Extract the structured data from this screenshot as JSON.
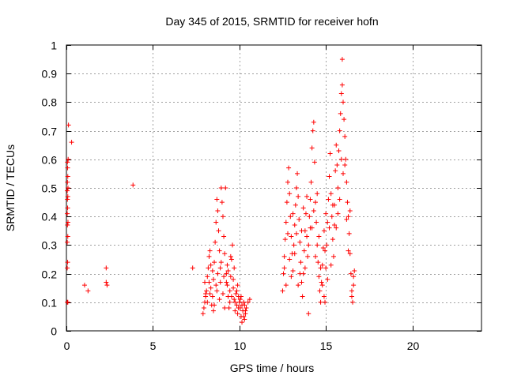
{
  "chart_data": {
    "type": "scatter",
    "title": "Day 345 of 2015, SRMTID for receiver hofn",
    "xlabel": "GPS time / hours",
    "ylabel": "SRMTID / TECUs",
    "xlim": [
      0,
      24
    ],
    "ylim": [
      0,
      1
    ],
    "xticks": [
      0,
      5,
      10,
      15,
      20
    ],
    "yticks": [
      0,
      0.1,
      0.2,
      0.3,
      0.4,
      0.5,
      0.6,
      0.7,
      0.8,
      0.9,
      1
    ],
    "xtick_labels": [
      "0",
      "5",
      "10",
      "15",
      "20"
    ],
    "ytick_labels": [
      "0",
      "0.1",
      "0.2",
      "0.3",
      "0.4",
      "0.5",
      "0.6",
      "0.7",
      "0.8",
      "0.9",
      "1"
    ],
    "grid": true,
    "marker": "+",
    "color": "#ff0000",
    "series": [
      {
        "name": "SRMTID",
        "points": [
          [
            0.05,
            0.1
          ],
          [
            0.08,
            0.1
          ],
          [
            0.05,
            0.22
          ],
          [
            0.07,
            0.24
          ],
          [
            0.05,
            0.31
          ],
          [
            0.08,
            0.33
          ],
          [
            0.06,
            0.37
          ],
          [
            0.09,
            0.38
          ],
          [
            0.05,
            0.41
          ],
          [
            0.07,
            0.43
          ],
          [
            0.06,
            0.46
          ],
          [
            0.08,
            0.47
          ],
          [
            0.05,
            0.49
          ],
          [
            0.09,
            0.5
          ],
          [
            0.06,
            0.52
          ],
          [
            0.08,
            0.54
          ],
          [
            0.07,
            0.57
          ],
          [
            0.06,
            0.59
          ],
          [
            0.1,
            0.6
          ],
          [
            0.12,
            0.72
          ],
          [
            0.3,
            0.66
          ],
          [
            1.05,
            0.16
          ],
          [
            1.25,
            0.14
          ],
          [
            2.3,
            0.22
          ],
          [
            2.3,
            0.17
          ],
          [
            2.35,
            0.16
          ],
          [
            3.85,
            0.51
          ],
          [
            7.3,
            0.22
          ],
          [
            7.9,
            0.06
          ],
          [
            7.95,
            0.08
          ],
          [
            8.0,
            0.1
          ],
          [
            8.05,
            0.12
          ],
          [
            8.1,
            0.14
          ],
          [
            8.0,
            0.17
          ],
          [
            8.15,
            0.19
          ],
          [
            8.2,
            0.22
          ],
          [
            8.25,
            0.26
          ],
          [
            8.3,
            0.28
          ],
          [
            8.35,
            0.15
          ],
          [
            8.4,
            0.09
          ],
          [
            8.45,
            0.12
          ],
          [
            8.5,
            0.18
          ],
          [
            8.55,
            0.24
          ],
          [
            8.6,
            0.31
          ],
          [
            8.65,
            0.38
          ],
          [
            8.7,
            0.46
          ],
          [
            8.75,
            0.42
          ],
          [
            8.8,
            0.35
          ],
          [
            8.85,
            0.28
          ],
          [
            8.9,
            0.22
          ],
          [
            8.95,
            0.5
          ],
          [
            9.0,
            0.45
          ],
          [
            9.05,
            0.4
          ],
          [
            9.1,
            0.33
          ],
          [
            9.15,
            0.27
          ],
          [
            9.2,
            0.5
          ],
          [
            9.25,
            0.2
          ],
          [
            9.3,
            0.16
          ],
          [
            9.35,
            0.12
          ],
          [
            9.4,
            0.08
          ],
          [
            9.45,
            0.14
          ],
          [
            9.5,
            0.19
          ],
          [
            9.55,
            0.25
          ],
          [
            9.6,
            0.3
          ],
          [
            9.65,
            0.18
          ],
          [
            9.7,
            0.11
          ],
          [
            9.75,
            0.07
          ],
          [
            9.8,
            0.13
          ],
          [
            9.85,
            0.09
          ],
          [
            9.9,
            0.06
          ],
          [
            9.95,
            0.12
          ],
          [
            10.0,
            0.1
          ],
          [
            10.05,
            0.08
          ],
          [
            10.1,
            0.05
          ],
          [
            10.15,
            0.03
          ],
          [
            10.2,
            0.07
          ],
          [
            10.25,
            0.1
          ],
          [
            10.3,
            0.09
          ],
          [
            10.35,
            0.06
          ],
          [
            10.4,
            0.08
          ],
          [
            10.5,
            0.1
          ],
          [
            10.6,
            0.11
          ],
          [
            8.05,
            0.13
          ],
          [
            8.25,
            0.17
          ],
          [
            8.45,
            0.21
          ],
          [
            8.65,
            0.16
          ],
          [
            8.85,
            0.11
          ],
          [
            9.05,
            0.13
          ],
          [
            9.25,
            0.17
          ],
          [
            9.45,
            0.1
          ],
          [
            9.65,
            0.15
          ],
          [
            9.85,
            0.14
          ],
          [
            10.05,
            0.11
          ],
          [
            10.25,
            0.05
          ],
          [
            8.35,
            0.23
          ],
          [
            8.55,
            0.09
          ],
          [
            8.75,
            0.2
          ],
          [
            8.95,
            0.24
          ],
          [
            9.15,
            0.08
          ],
          [
            9.35,
            0.21
          ],
          [
            9.55,
            0.12
          ],
          [
            9.75,
            0.1
          ],
          [
            9.95,
            0.08
          ],
          [
            10.15,
            0.09
          ],
          [
            10.35,
            0.07
          ],
          [
            8.15,
            0.1
          ],
          [
            8.3,
            0.13
          ],
          [
            8.5,
            0.07
          ],
          [
            8.7,
            0.14
          ],
          [
            8.9,
            0.17
          ],
          [
            9.1,
            0.19
          ],
          [
            9.3,
            0.23
          ],
          [
            9.5,
            0.26
          ],
          [
            9.7,
            0.22
          ],
          [
            9.9,
            0.16
          ],
          [
            10.1,
            0.12
          ],
          [
            10.3,
            0.04
          ],
          [
            12.5,
            0.14
          ],
          [
            12.55,
            0.2
          ],
          [
            12.6,
            0.26
          ],
          [
            12.65,
            0.32
          ],
          [
            12.7,
            0.38
          ],
          [
            12.75,
            0.45
          ],
          [
            12.8,
            0.52
          ],
          [
            12.85,
            0.57
          ],
          [
            12.9,
            0.48
          ],
          [
            12.95,
            0.4
          ],
          [
            13.0,
            0.33
          ],
          [
            13.05,
            0.27
          ],
          [
            13.1,
            0.21
          ],
          [
            13.15,
            0.3
          ],
          [
            13.2,
            0.37
          ],
          [
            13.25,
            0.44
          ],
          [
            13.3,
            0.5
          ],
          [
            13.35,
            0.55
          ],
          [
            13.4,
            0.47
          ],
          [
            13.45,
            0.39
          ],
          [
            13.5,
            0.31
          ],
          [
            13.55,
            0.24
          ],
          [
            13.6,
            0.17
          ],
          [
            13.65,
            0.12
          ],
          [
            13.7,
            0.2
          ],
          [
            13.75,
            0.28
          ],
          [
            13.8,
            0.35
          ],
          [
            13.85,
            0.41
          ],
          [
            13.9,
            0.33
          ],
          [
            13.95,
            0.26
          ],
          [
            14.0,
            0.06
          ],
          [
            14.05,
            0.4
          ],
          [
            14.1,
            0.46
          ],
          [
            14.15,
            0.52
          ],
          [
            14.2,
            0.64
          ],
          [
            14.25,
            0.7
          ],
          [
            14.3,
            0.73
          ],
          [
            14.35,
            0.59
          ],
          [
            14.4,
            0.45
          ],
          [
            14.45,
            0.38
          ],
          [
            14.5,
            0.3
          ],
          [
            14.55,
            0.24
          ],
          [
            14.6,
            0.19
          ],
          [
            14.65,
            0.14
          ],
          [
            14.7,
            0.1
          ],
          [
            14.75,
            0.17
          ],
          [
            14.8,
            0.23
          ],
          [
            14.85,
            0.29
          ],
          [
            14.9,
            0.35
          ],
          [
            14.95,
            0.28
          ],
          [
            15.0,
            0.22
          ],
          [
            15.05,
            0.3
          ],
          [
            15.1,
            0.38
          ],
          [
            15.15,
            0.46
          ],
          [
            15.2,
            0.54
          ],
          [
            15.25,
            0.62
          ],
          [
            15.3,
            0.48
          ],
          [
            15.35,
            0.4
          ],
          [
            15.4,
            0.32
          ],
          [
            15.45,
            0.26
          ],
          [
            15.5,
            0.44
          ],
          [
            15.55,
            0.56
          ],
          [
            15.6,
            0.65
          ],
          [
            15.65,
            0.58
          ],
          [
            15.7,
            0.5
          ],
          [
            15.75,
            0.63
          ],
          [
            15.8,
            0.7
          ],
          [
            15.85,
            0.76
          ],
          [
            15.9,
            0.83
          ],
          [
            15.95,
            0.86
          ],
          [
            16.0,
            0.8
          ],
          [
            16.05,
            0.74
          ],
          [
            16.1,
            0.68
          ],
          [
            16.15,
            0.6
          ],
          [
            16.2,
            0.52
          ],
          [
            16.25,
            0.45
          ],
          [
            16.3,
            0.4
          ],
          [
            16.35,
            0.34
          ],
          [
            16.4,
            0.27
          ],
          [
            16.45,
            0.2
          ],
          [
            16.5,
            0.14
          ],
          [
            16.55,
            0.1
          ],
          [
            16.6,
            0.16
          ],
          [
            16.65,
            0.21
          ],
          [
            15.95,
            0.95
          ],
          [
            12.6,
            0.22
          ],
          [
            12.8,
            0.34
          ],
          [
            13.0,
            0.19
          ],
          [
            13.2,
            0.27
          ],
          [
            13.4,
            0.16
          ],
          [
            13.6,
            0.35
          ],
          [
            13.8,
            0.22
          ],
          [
            14.0,
            0.3
          ],
          [
            14.2,
            0.36
          ],
          [
            14.4,
            0.26
          ],
          [
            14.6,
            0.33
          ],
          [
            14.8,
            0.16
          ],
          [
            15.0,
            0.41
          ],
          [
            15.2,
            0.36
          ],
          [
            15.4,
            0.44
          ],
          [
            15.6,
            0.36
          ],
          [
            15.8,
            0.46
          ],
          [
            16.0,
            0.55
          ],
          [
            16.2,
            0.39
          ],
          [
            16.4,
            0.42
          ],
          [
            16.6,
            0.19
          ],
          [
            12.7,
            0.16
          ],
          [
            12.9,
            0.25
          ],
          [
            13.1,
            0.41
          ],
          [
            13.3,
            0.34
          ],
          [
            13.5,
            0.2
          ],
          [
            13.7,
            0.43
          ],
          [
            13.9,
            0.47
          ],
          [
            14.1,
            0.36
          ],
          [
            14.3,
            0.42
          ],
          [
            14.5,
            0.48
          ],
          [
            14.7,
            0.22
          ],
          [
            14.9,
            0.12
          ],
          [
            15.1,
            0.18
          ],
          [
            15.3,
            0.23
          ],
          [
            15.5,
            0.37
          ],
          [
            15.7,
            0.41
          ],
          [
            15.9,
            0.6
          ],
          [
            16.1,
            0.58
          ],
          [
            16.3,
            0.28
          ],
          [
            16.5,
            0.12
          ],
          [
            14.95,
            0.1
          ]
        ]
      }
    ]
  }
}
